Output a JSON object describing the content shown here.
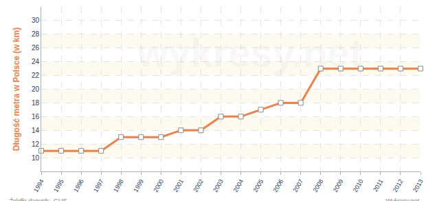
{
  "chart_data": {
    "type": "line",
    "ylabel": "Długość metra w Polsce (w km)",
    "categories": [
      "1994",
      "1995",
      "1996",
      "1997",
      "1998",
      "1999",
      "2000",
      "2001",
      "2002",
      "2003",
      "2004",
      "2005",
      "2006",
      "2007",
      "2008",
      "2009",
      "2010",
      "2011",
      "2012",
      "2013"
    ],
    "values": [
      11,
      11,
      11,
      11,
      13,
      13,
      13,
      14,
      14,
      16,
      16,
      17,
      18,
      18,
      23,
      23,
      23,
      23,
      23,
      23
    ],
    "color": "#f47f45",
    "marker": "square",
    "ylim": [
      8,
      32
    ],
    "yticks": [
      10,
      12,
      14,
      16,
      18,
      20,
      22,
      24,
      26,
      28,
      30
    ],
    "grid": true,
    "source": "Źródło danych:  GUS",
    "credit": "Wykresy.net",
    "watermark": "wykresy.net"
  }
}
